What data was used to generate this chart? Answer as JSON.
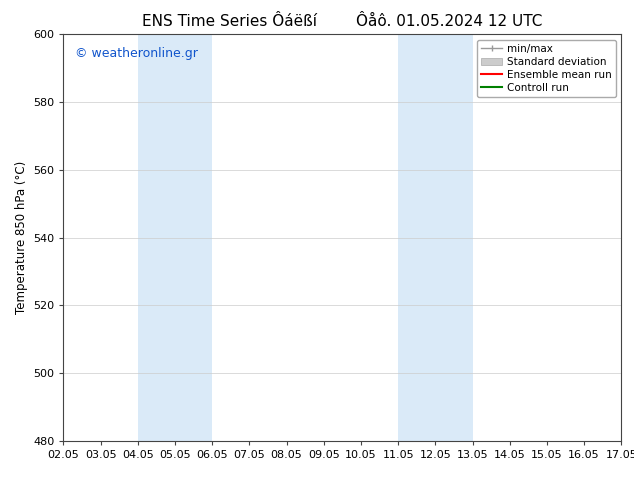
{
  "title_left": "ENS Time Series Ôáëßí",
  "title_right": "Ôåô. 01.05.2024 12 UTC",
  "ylabel": "Temperature 850 hPa (°C)",
  "ylim": [
    480,
    600
  ],
  "yticks": [
    480,
    500,
    520,
    540,
    560,
    580,
    600
  ],
  "xtick_labels": [
    "02.05",
    "03.05",
    "04.05",
    "05.05",
    "06.05",
    "07.05",
    "08.05",
    "09.05",
    "10.05",
    "11.05",
    "12.05",
    "13.05",
    "14.05",
    "15.05",
    "16.05",
    "17.05"
  ],
  "xlim": [
    0,
    15
  ],
  "shaded_regions": [
    {
      "x_start": 2.0,
      "x_end": 4.0,
      "color": "#daeaf8"
    },
    {
      "x_start": 9.0,
      "x_end": 11.0,
      "color": "#daeaf8"
    }
  ],
  "watermark_text": "© weatheronline.gr",
  "watermark_color": "#1155cc",
  "watermark_fontsize": 9,
  "legend_items": [
    {
      "label": "min/max",
      "color": "#999999",
      "type": "minmax"
    },
    {
      "label": "Standard deviation",
      "color": "#cccccc",
      "type": "fill"
    },
    {
      "label": "Ensemble mean run",
      "color": "red",
      "type": "line"
    },
    {
      "label": "Controll run",
      "color": "green",
      "type": "line"
    }
  ],
  "bg_color": "white",
  "spine_color": "#444444",
  "grid_color": "#cccccc",
  "title_fontsize": 11,
  "axis_fontsize": 8.5,
  "tick_fontsize": 8,
  "legend_fontsize": 7.5
}
